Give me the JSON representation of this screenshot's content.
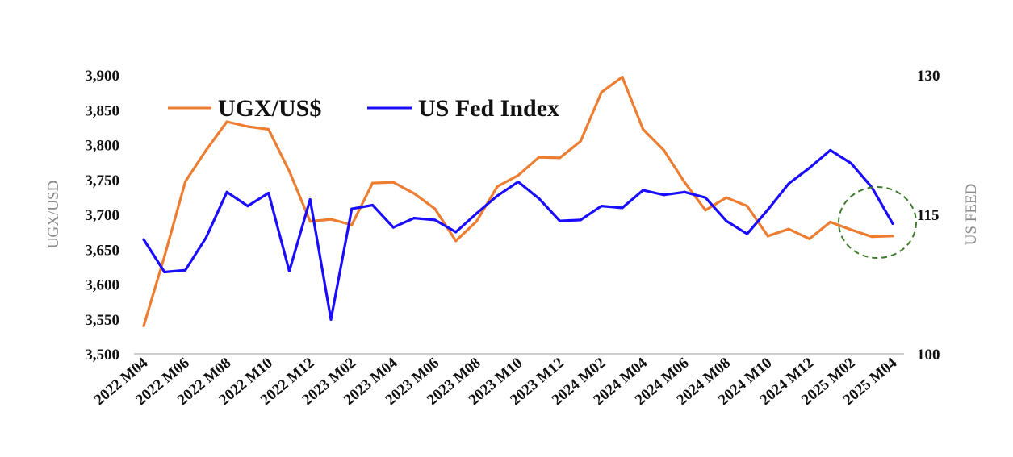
{
  "chart_data": {
    "type": "line",
    "categories": [
      "2022 M04",
      "2022 M05",
      "2022 M06",
      "2022 M07",
      "2022 M08",
      "2022 M09",
      "2022 M10",
      "2022 M11",
      "2022 M12",
      "2023 M01",
      "2023 M02",
      "2023 M03",
      "2023 M04",
      "2023 M05",
      "2023 M06",
      "2023 M07",
      "2023 M08",
      "2023 M09",
      "2023 M10",
      "2023 M11",
      "2023 M12",
      "2024 M01",
      "2024 M02",
      "2024 M03",
      "2024 M04",
      "2024 M05",
      "2024 M06",
      "2024 M07",
      "2024 M08",
      "2024 M09",
      "2024 M10",
      "2024 M11",
      "2024 M12",
      "2025 M01",
      "2025 M02",
      "2025 M03",
      "2025 M04"
    ],
    "tick_labels": [
      "2022 M04",
      "2022 M06",
      "2022 M08",
      "2022 M10",
      "2022 M12",
      "2023 M02",
      "2023 M04",
      "2023 M06",
      "2023 M08",
      "2023 M10",
      "2023 M12",
      "2024 M02",
      "2024 M04",
      "2024 M06",
      "2024 M08",
      "2024 M10",
      "2024 M12",
      "2025 M02",
      "2025 M04"
    ],
    "series": [
      {
        "name": "UGX/US$",
        "axis": "left",
        "color": "#ED7D31",
        "values": [
          3540,
          3640,
          3747,
          3792,
          3833,
          3826,
          3822,
          3762,
          3690,
          3693,
          3685,
          3745,
          3746,
          3730,
          3708,
          3662,
          3690,
          3740,
          3756,
          3782,
          3781,
          3805,
          3875,
          3897,
          3822,
          3792,
          3746,
          3706,
          3724,
          3712,
          3669,
          3679,
          3665,
          3689,
          3678,
          3668,
          3669
        ]
      },
      {
        "name": "US Fed Index",
        "axis": "right",
        "color": "#1A0DFF",
        "values": [
          112.3,
          108.8,
          109.0,
          112.5,
          117.4,
          115.9,
          117.3,
          108.9,
          116.6,
          103.7,
          115.6,
          116.0,
          113.6,
          114.6,
          114.4,
          113.1,
          115.1,
          117.0,
          118.5,
          116.7,
          114.3,
          114.4,
          115.9,
          115.7,
          117.6,
          117.1,
          117.4,
          116.8,
          114.3,
          112.9,
          115.5,
          118.3,
          120.0,
          121.9,
          120.5,
          117.9,
          114.0
        ]
      }
    ],
    "y_left": {
      "label": "UGX/USD",
      "min": 3500,
      "max": 3900,
      "ticks": [
        "3,500",
        "3,550",
        "3,600",
        "3,650",
        "3,700",
        "3,750",
        "3,800",
        "3,850",
        "3,900"
      ]
    },
    "y_right": {
      "label": "US FEED",
      "min": 100,
      "max": 130,
      "ticks": [
        "100",
        "115",
        "130"
      ]
    },
    "legend": {
      "position": "top-left",
      "entries": [
        "UGX/US$",
        "US Fed Index"
      ]
    },
    "annotation": {
      "type": "dashed-circle",
      "color": "#3F7A2C",
      "around": "2025 M03"
    },
    "grid": false,
    "title": ""
  }
}
